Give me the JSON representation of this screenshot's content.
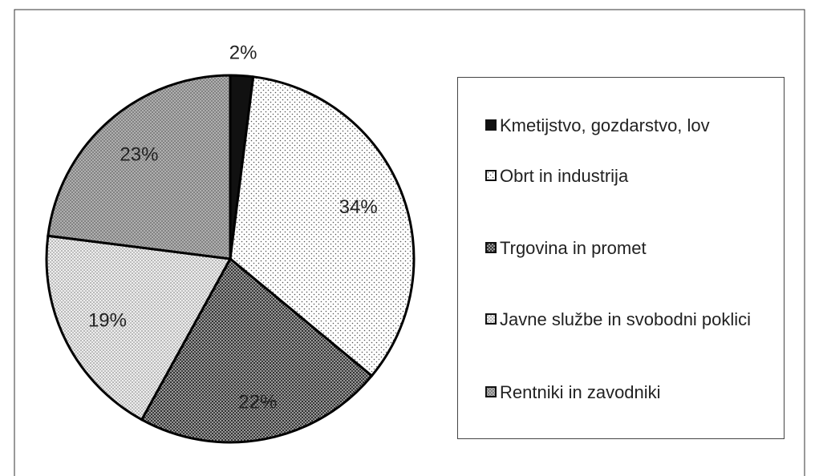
{
  "chart_data": {
    "type": "pie",
    "categories": [
      "Kmetijstvo, gozdarstvo, lov",
      "Obrt in industrija",
      "Trgovina in promet",
      "Javne službe in svobodni poklici",
      "Rentniki in zavodniki"
    ],
    "values": [
      2,
      34,
      22,
      19,
      23
    ],
    "value_labels": [
      "2%",
      "34%",
      "22%",
      "19%",
      "23%"
    ],
    "legend": "right"
  }
}
